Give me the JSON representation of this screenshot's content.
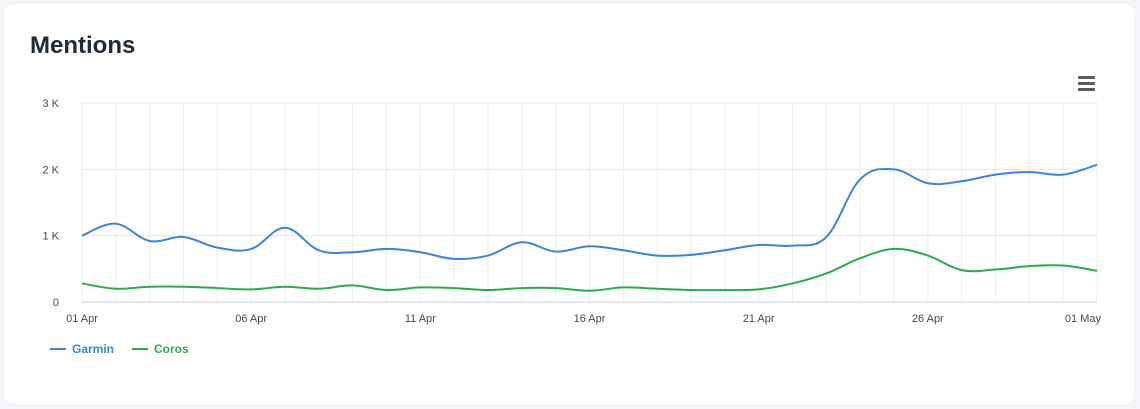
{
  "card": {
    "title": "Mentions"
  },
  "menu": {
    "icon": "hamburger-menu-icon"
  },
  "chart_data": {
    "type": "line",
    "title": "Mentions",
    "xlabel": "",
    "ylabel": "",
    "x_dates": [
      "01 Apr",
      "02 Apr",
      "03 Apr",
      "04 Apr",
      "05 Apr",
      "06 Apr",
      "07 Apr",
      "08 Apr",
      "09 Apr",
      "10 Apr",
      "11 Apr",
      "12 Apr",
      "13 Apr",
      "14 Apr",
      "15 Apr",
      "16 Apr",
      "17 Apr",
      "18 Apr",
      "19 Apr",
      "20 Apr",
      "21 Apr",
      "22 Apr",
      "23 Apr",
      "24 Apr",
      "25 Apr",
      "26 Apr",
      "27 Apr",
      "28 Apr",
      "29 Apr",
      "30 Apr",
      "01 May"
    ],
    "x_tick_labels": [
      "01 Apr",
      "06 Apr",
      "11 Apr",
      "16 Apr",
      "21 Apr",
      "26 Apr",
      "01 May"
    ],
    "y_tick_labels": [
      "0",
      "1 K",
      "2 K",
      "3 K"
    ],
    "ylim": [
      0,
      3000
    ],
    "grid": true,
    "legend_position": "bottom-left",
    "series": [
      {
        "name": "Garmin",
        "color": "#3a86d6",
        "values": [
          1000,
          1180,
          920,
          980,
          820,
          800,
          1120,
          780,
          750,
          800,
          750,
          650,
          700,
          900,
          760,
          840,
          780,
          700,
          710,
          780,
          860,
          850,
          980,
          1850,
          2000,
          1790,
          1820,
          1920,
          1960,
          1920,
          2070
        ]
      },
      {
        "name": "Coros",
        "color": "#2eaa4e",
        "values": [
          280,
          200,
          230,
          230,
          210,
          190,
          230,
          200,
          250,
          180,
          220,
          210,
          180,
          210,
          210,
          170,
          220,
          200,
          180,
          180,
          190,
          280,
          430,
          660,
          800,
          700,
          480,
          490,
          540,
          550,
          470
        ]
      }
    ]
  }
}
